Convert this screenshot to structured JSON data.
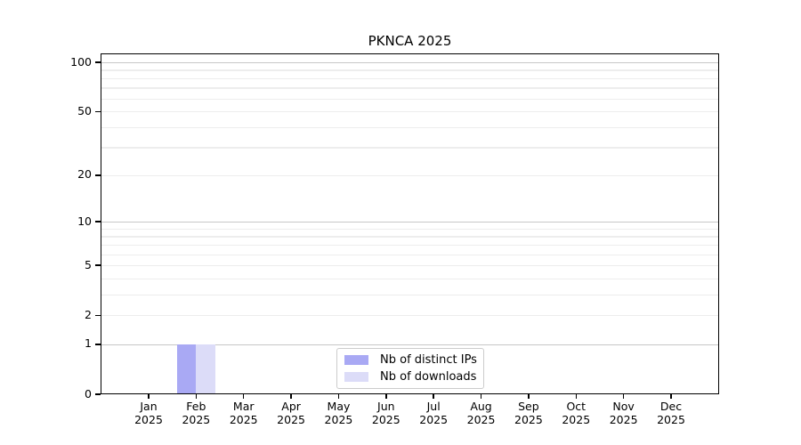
{
  "chart_data": {
    "type": "bar",
    "title": "PKNCA 2025",
    "categories": [
      "Jan",
      "Feb",
      "Mar",
      "Apr",
      "May",
      "Jun",
      "Jul",
      "Aug",
      "Sep",
      "Oct",
      "Nov",
      "Dec"
    ],
    "category_year": "2025",
    "series": [
      {
        "name": "Nb of distinct IPs",
        "color": "#a9a9f4",
        "values": [
          0,
          1,
          0,
          0,
          0,
          0,
          0,
          0,
          0,
          0,
          0,
          0
        ]
      },
      {
        "name": "Nb of downloads",
        "color": "#dcdcf8",
        "values": [
          0,
          1,
          0,
          0,
          0,
          0,
          0,
          0,
          0,
          0,
          0,
          0
        ]
      }
    ],
    "y_axis": {
      "scale": "log1p",
      "tick_labels": [
        0,
        1,
        2,
        5,
        10,
        20,
        50,
        100
      ],
      "minor_gridlines": [
        2,
        3,
        4,
        5,
        6,
        7,
        8,
        9,
        20,
        30,
        40,
        50,
        60,
        70,
        80,
        90
      ],
      "emphasized_gridlines": [
        1,
        10,
        100
      ]
    },
    "legend": {
      "position": "bottom-center",
      "entries": [
        "Nb of distinct IPs",
        "Nb of downloads"
      ]
    },
    "grid": true
  },
  "colors": {
    "background": "#ffffff",
    "axis": "#000000",
    "grid_minor": "#ededed",
    "grid_emphasis": "#c7c7c7",
    "legend_border": "#cccccc",
    "bar_distinct_ips": "#a9a9f4",
    "bar_downloads": "#dcdcf8"
  }
}
